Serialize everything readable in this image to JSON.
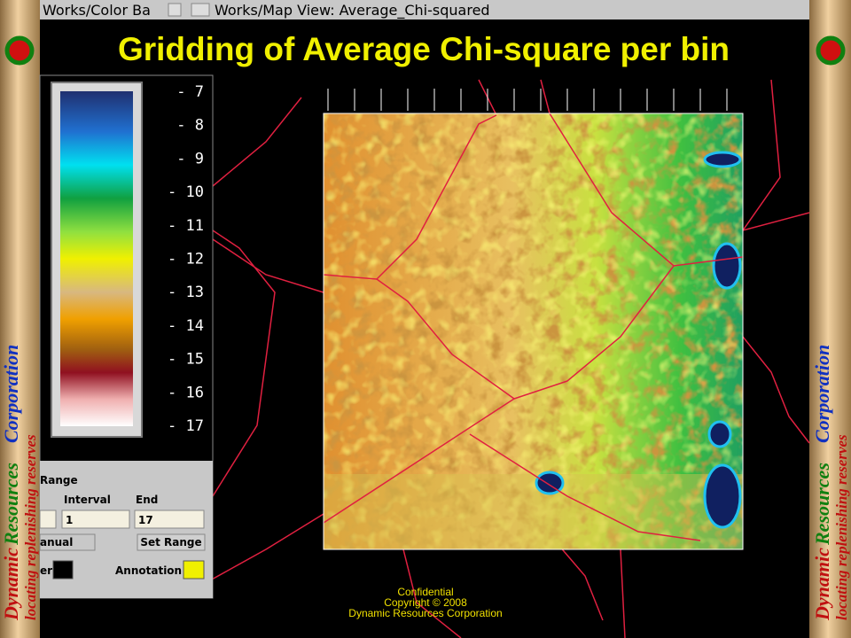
{
  "header": {
    "title": "Gridding of Average Chi-square per bin"
  },
  "windows": {
    "color_bar_title": "Works/Color Ba",
    "map_view_title": "Works/Map View: Average_Chi-squared"
  },
  "colorbar": {
    "labels": [
      "- 7",
      "- 8",
      "- 9",
      "- 10",
      "- 11",
      "- 12",
      "- 13",
      "- 14",
      "- 15",
      "- 16",
      "- 17"
    ]
  },
  "range_panel": {
    "heading": "Range",
    "interval_label": "Interval",
    "end_label": "End",
    "interval_value": "1",
    "end_value": "17",
    "mode": "anual",
    "set_range": "Set Range",
    "border_label": "er",
    "annotation_label": "Annotation"
  },
  "footer": {
    "line1": "Confidential",
    "line2": "Copyright © 2008",
    "line3": "Dynamic Resources Corporation"
  },
  "banner": {
    "company_1": "Dynamic",
    "company_2": "Resources",
    "company_3": "Corporation",
    "tagline": "locating replenishing reserves"
  }
}
